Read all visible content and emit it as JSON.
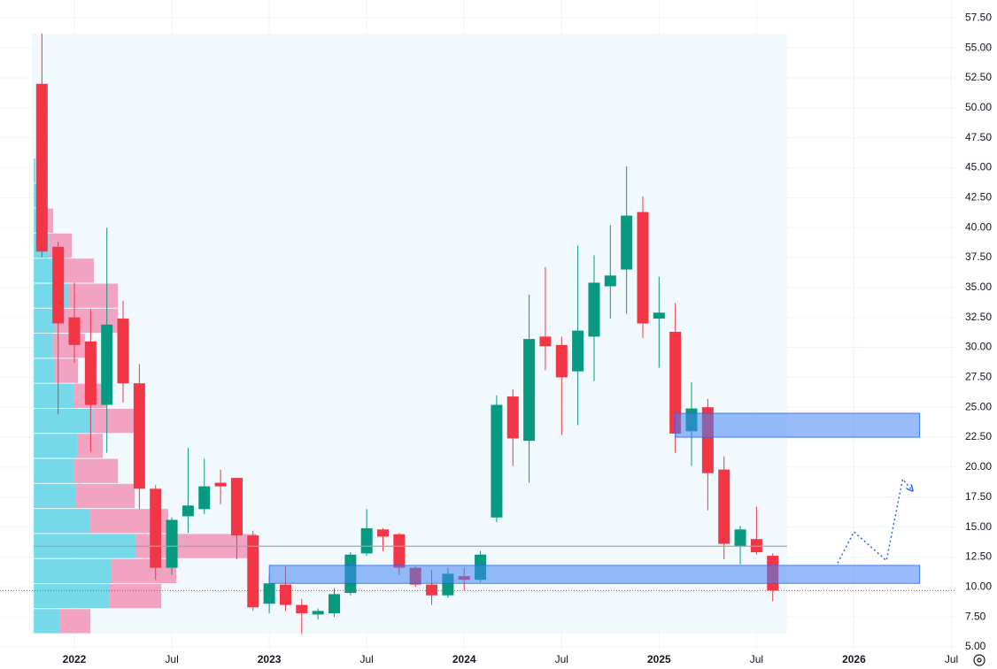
{
  "chart_data": {
    "type": "candlestick",
    "up_color": "#089981",
    "down_color": "#f23645",
    "grid": true,
    "xlim": [
      -4.58,
      54.3
    ],
    "ylim": [
      4,
      59
    ],
    "xticks": [
      {
        "value": 0,
        "label": "2022"
      },
      {
        "value": 6,
        "label": "Jul"
      },
      {
        "value": 12,
        "label": "2023"
      },
      {
        "value": 18,
        "label": "Jul"
      },
      {
        "value": 24,
        "label": "2024"
      },
      {
        "value": 30,
        "label": "Jul"
      },
      {
        "value": 36,
        "label": "2025"
      },
      {
        "value": 42,
        "label": "Jul"
      },
      {
        "value": 48,
        "label": "2026"
      },
      {
        "value": 54,
        "label": "Jul"
      }
    ],
    "yticks": [
      {
        "value": 5,
        "label": "5.00"
      },
      {
        "value": 7.5,
        "label": "7.50"
      },
      {
        "value": 10,
        "label": "10.00"
      },
      {
        "value": 12.5,
        "label": "12.50"
      },
      {
        "value": 15,
        "label": "15.00"
      },
      {
        "value": 17.5,
        "label": "17.50"
      },
      {
        "value": 20,
        "label": "20.00"
      },
      {
        "value": 22.5,
        "label": "22.50"
      },
      {
        "value": 25,
        "label": "25.00"
      },
      {
        "value": 27.5,
        "label": "27.50"
      },
      {
        "value": 30,
        "label": "30.00"
      },
      {
        "value": 32.5,
        "label": "32.50"
      },
      {
        "value": 35,
        "label": "35.00"
      },
      {
        "value": 37.5,
        "label": "37.50"
      },
      {
        "value": 40,
        "label": "40.00"
      },
      {
        "value": 42.5,
        "label": "42.50"
      },
      {
        "value": 45,
        "label": "45.00"
      },
      {
        "value": 47.5,
        "label": "47.50"
      },
      {
        "value": 50,
        "label": "50.00"
      },
      {
        "value": 52.5,
        "label": "52.50"
      },
      {
        "value": 55,
        "label": "55.00"
      },
      {
        "value": 57.5,
        "label": "57.50"
      }
    ],
    "x": [
      -2,
      -1,
      0,
      1,
      2,
      3,
      4,
      5,
      6,
      7,
      8,
      9,
      10,
      11,
      12,
      13,
      14,
      15,
      16,
      17,
      18,
      19,
      20,
      21,
      22,
      23,
      24,
      25,
      26,
      27,
      28,
      29,
      30,
      31,
      32,
      33,
      34,
      35,
      36,
      37,
      38,
      39,
      40,
      41,
      42,
      43
    ],
    "open": [
      52,
      38.4,
      32.5,
      30.5,
      25.2,
      32.4,
      27,
      18.2,
      11.6,
      15.9,
      16.5,
      18.7,
      19.1,
      14.3,
      8.6,
      10.2,
      8.5,
      7.7,
      7.8,
      9.5,
      12.8,
      14.8,
      14.4,
      11.6,
      10.2,
      9.3,
      10.9,
      10.6,
      15.8,
      25.9,
      22.2,
      30.9,
      30.2,
      28,
      30.9,
      35.1,
      36.5,
      41.3,
      32.4,
      31.3,
      23,
      25,
      19.8,
      13.4,
      14,
      12.6
    ],
    "high": [
      56.2,
      38.8,
      35.4,
      33.2,
      40,
      33.9,
      28.6,
      18.5,
      15.8,
      21.6,
      20.7,
      19.8,
      19.1,
      14.7,
      11,
      11.7,
      9,
      8.2,
      9.9,
      12.9,
      16.5,
      14.9,
      14.5,
      11.7,
      11.4,
      11.6,
      11.6,
      13,
      26,
      26.5,
      34.4,
      36.7,
      30.9,
      38.5,
      37.7,
      40.2,
      45.1,
      42.6,
      35.9,
      33.7,
      27.1,
      25.7,
      20.9,
      15.1,
      16.7,
      12.8
    ],
    "low": [
      37.5,
      24.4,
      28.7,
      21.3,
      21.2,
      25.4,
      16.5,
      10.6,
      11,
      14.5,
      16.1,
      16.9,
      12.3,
      8,
      7.8,
      8,
      6.1,
      7.3,
      7.5,
      9.3,
      12.6,
      13,
      11,
      10,
      8.5,
      9.1,
      9.7,
      10.4,
      15.4,
      20.1,
      18.7,
      28.1,
      22.7,
      23.5,
      27.2,
      32.4,
      32.8,
      30.8,
      28.3,
      21.2,
      20.1,
      16.4,
      12.3,
      11.9,
      12.7,
      8.8
    ],
    "close": [
      38,
      32,
      30.2,
      25.2,
      31.9,
      27,
      18.2,
      11.6,
      15.6,
      16.8,
      18.4,
      18.4,
      14.3,
      8.3,
      10.3,
      8.5,
      7.8,
      8,
      9.4,
      12.7,
      14.9,
      14.2,
      11.6,
      10.2,
      9.3,
      11.1,
      10.6,
      12.7,
      25.2,
      22.4,
      30.7,
      30.1,
      27.5,
      31.4,
      35.4,
      36,
      41,
      32,
      32.9,
      22.8,
      24.9,
      19.5,
      13.6,
      14.8,
      12.9,
      9.7
    ],
    "volume_profile": {
      "row_low": 6.1,
      "row_height": 2.09,
      "up": [
        29,
        85,
        88,
        115,
        63,
        47,
        45,
        49,
        67,
        45,
        24,
        22,
        24,
        39,
        22,
        17,
        7,
        4,
        2
      ],
      "down": [
        35,
        59,
        73,
        137,
        89,
        67,
        50,
        29,
        47,
        37,
        26,
        36,
        71,
        56,
        46,
        26,
        15,
        0,
        0
      ]
    },
    "zones": [
      {
        "from": 37,
        "to": 52.05,
        "low": 22.5,
        "high": 24.5
      },
      {
        "from": 12,
        "to": 52.05,
        "low": 10.3,
        "high": 11.8
      }
    ],
    "horizontal_line": 13.4,
    "projection": {
      "x": [
        47,
        48,
        50,
        51,
        51.5
      ],
      "y": [
        12,
        14.6,
        12.2,
        19,
        18.2
      ]
    }
  }
}
